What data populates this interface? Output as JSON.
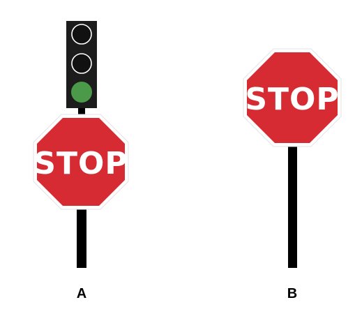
{
  "sign_a": {
    "sign_text": "STOP",
    "caption": "A",
    "traffic_light": {
      "lamps": [
        "off",
        "off",
        "green"
      ]
    }
  },
  "sign_b": {
    "sign_text": "STOP",
    "caption": "B"
  },
  "colors": {
    "sign_red": "#d62b32",
    "sign_border": "#ffffff",
    "pole": "#000000",
    "light_housing": "#1c1c1c",
    "lamp_off": "#111111",
    "lamp_green": "#4a9a4a"
  }
}
